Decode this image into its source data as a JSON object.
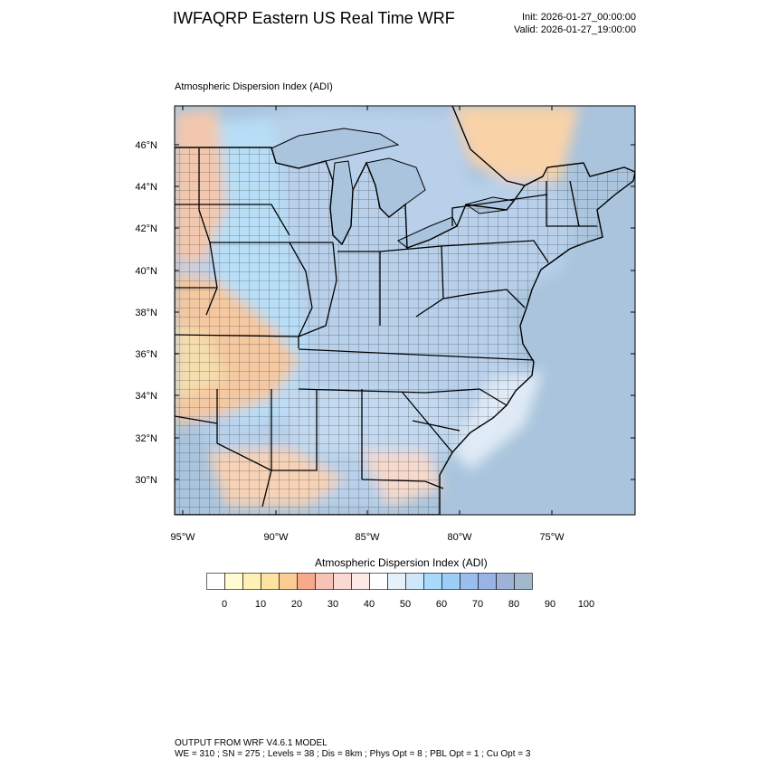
{
  "title": "IWFAQRP Eastern US Real Time WRF",
  "init": "Init: 2026-01-27_00:00:00",
  "valid": "Valid: 2026-01-27_19:00:00",
  "panel_title": "Atmospheric Dispersion Index   (ADI)",
  "map": {
    "lat_labels": [
      "46°N",
      "44°N",
      "42°N",
      "40°N",
      "38°N",
      "36°N",
      "34°N",
      "32°N",
      "30°N"
    ],
    "lon_labels": [
      "95°W",
      "90°W",
      "85°W",
      "80°W",
      "75°W"
    ],
    "colors": {
      "water": "#a9c4dc",
      "land_high_adi": "#b5cde6",
      "land_low_adi": "#f6c9a0",
      "state_border": "#000000"
    }
  },
  "colorbar": {
    "title": "Atmospheric Dispersion Index  (ADI)",
    "tick_labels": [
      "0",
      "10",
      "20",
      "30",
      "40",
      "50",
      "60",
      "70",
      "80",
      "90",
      "100"
    ],
    "colors": [
      "#ffffff",
      "#fffbd2",
      "#fff0b4",
      "#fde3a0",
      "#fbcd94",
      "#f7a98c",
      "#f7c3b6",
      "#fbd9d2",
      "#fde9e6",
      "#ffffff",
      "#e6f0fa",
      "#cfe7fb",
      "#a9dafc",
      "#9ccff8",
      "#9bbef0",
      "#9ab3e7",
      "#9eb2d7",
      "#a2b8cc"
    ]
  },
  "footer": {
    "line1": "OUTPUT FROM WRF V4.6.1 MODEL",
    "line2": "WE = 310 ; SN = 275 ; Levels = 38 ; Dis = 8km ; Phys Opt = 8 ; PBL Opt = 1 ; Cu Opt = 3"
  }
}
